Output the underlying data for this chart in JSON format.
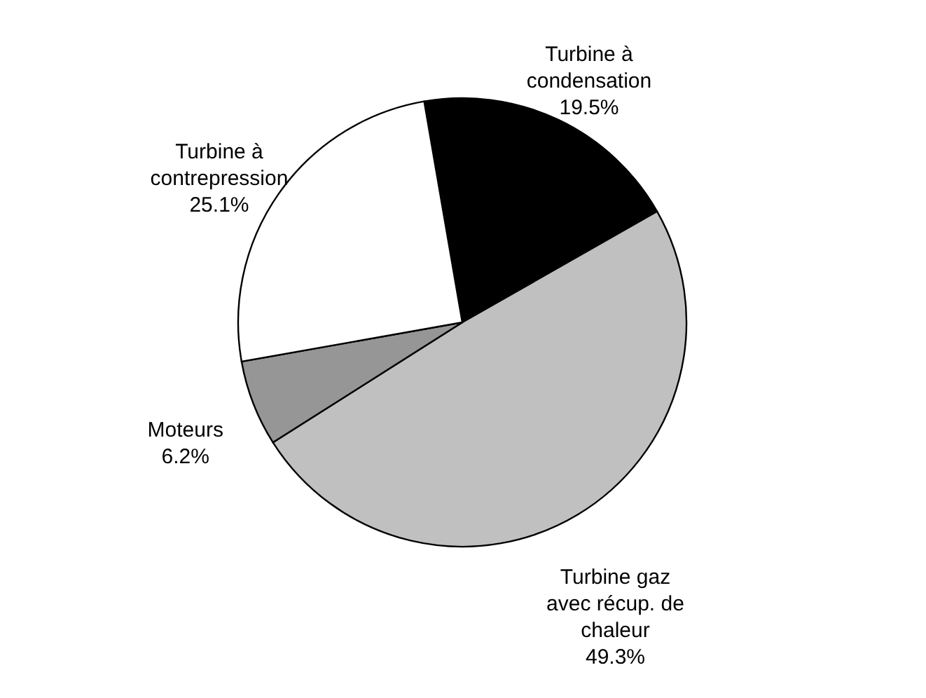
{
  "chart_data": {
    "type": "pie",
    "categories": [
      "Turbine à condensation",
      "Turbine gaz avec récup. de chaleur",
      "Moteurs",
      "Turbine à contrepression"
    ],
    "values": [
      19.5,
      49.3,
      6.2,
      25.1
    ],
    "value_labels": [
      "19.5%",
      "49.3%",
      "6.2%",
      "25.1%"
    ],
    "colors": [
      "#000000",
      "#c0c0c0",
      "#969696",
      "#ffffff"
    ]
  }
}
